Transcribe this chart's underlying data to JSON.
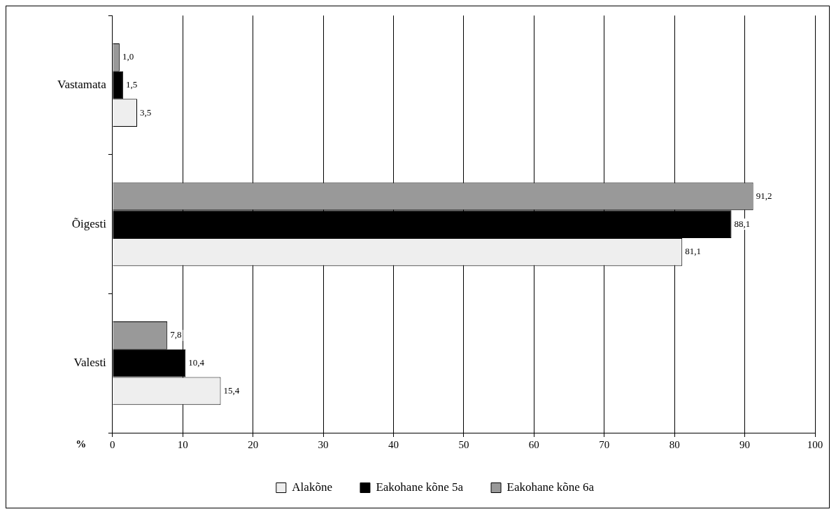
{
  "chart_data": {
    "type": "bar",
    "orientation": "horizontal",
    "xlabel": "%",
    "categories": [
      "Vastamata",
      "Õigesti",
      "Valesti"
    ],
    "series": [
      {
        "name": "Alakõne",
        "color": "#eeeeee",
        "values": [
          3.5,
          81.1,
          15.4
        ],
        "value_labels": [
          "3,5",
          "81,1",
          "15,4"
        ]
      },
      {
        "name": "Eakohane kõne 5a",
        "color": "#000000",
        "values": [
          1.5,
          88.1,
          10.4
        ],
        "value_labels": [
          "1,5",
          "88,1",
          "10,4"
        ]
      },
      {
        "name": "Eakohane kõne 6a",
        "color": "#999999",
        "values": [
          1.0,
          91.2,
          7.8
        ],
        "value_labels": [
          "1,0",
          "91,2",
          "7,8"
        ]
      }
    ],
    "xlim": [
      0,
      100
    ],
    "xticks": [
      0,
      10,
      20,
      30,
      40,
      50,
      60,
      70,
      80,
      90,
      100
    ],
    "grid": "x",
    "legend": "bottom"
  }
}
